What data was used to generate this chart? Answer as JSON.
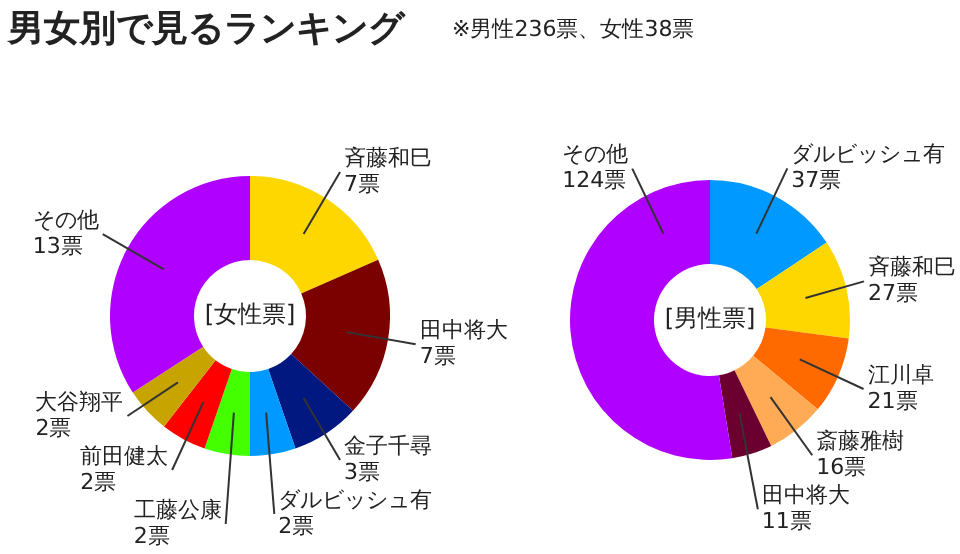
{
  "chart_data": [
    {
      "type": "donut",
      "title": "男女別で見るランキング",
      "subtitle": "[女性票]",
      "annotations": [
        "※男性236票、女性38票"
      ],
      "categories": [
        "斉藤和巳",
        "田中将大",
        "金子千尋",
        "ダルビッシュ有",
        "工藤公康",
        "前田健太",
        "大谷翔平",
        "その他"
      ],
      "values": [
        7,
        7,
        3,
        2,
        2,
        2,
        2,
        13
      ],
      "value_labels": [
        "7票",
        "7票",
        "3票",
        "2票",
        "2票",
        "2票",
        "2票",
        "13票"
      ],
      "colors": [
        "#ffd700",
        "#7b0000",
        "#001880",
        "#0099ff",
        "#44ff00",
        "#ff0000",
        "#c8a400",
        "#b000ff"
      ]
    },
    {
      "type": "donut",
      "subtitle": "[男性票]",
      "categories": [
        "ダルビッシュ有",
        "斉藤和巳",
        "江川卓",
        "斎藤雅樹",
        "田中将大",
        "その他"
      ],
      "values": [
        37,
        27,
        21,
        16,
        11,
        124
      ],
      "value_labels": [
        "37票",
        "27票",
        "21票",
        "16票",
        "11票",
        "124票"
      ],
      "colors": [
        "#0099ff",
        "#ffd700",
        "#ff6a00",
        "#ffaa55",
        "#6b0030",
        "#b000ff"
      ]
    }
  ]
}
